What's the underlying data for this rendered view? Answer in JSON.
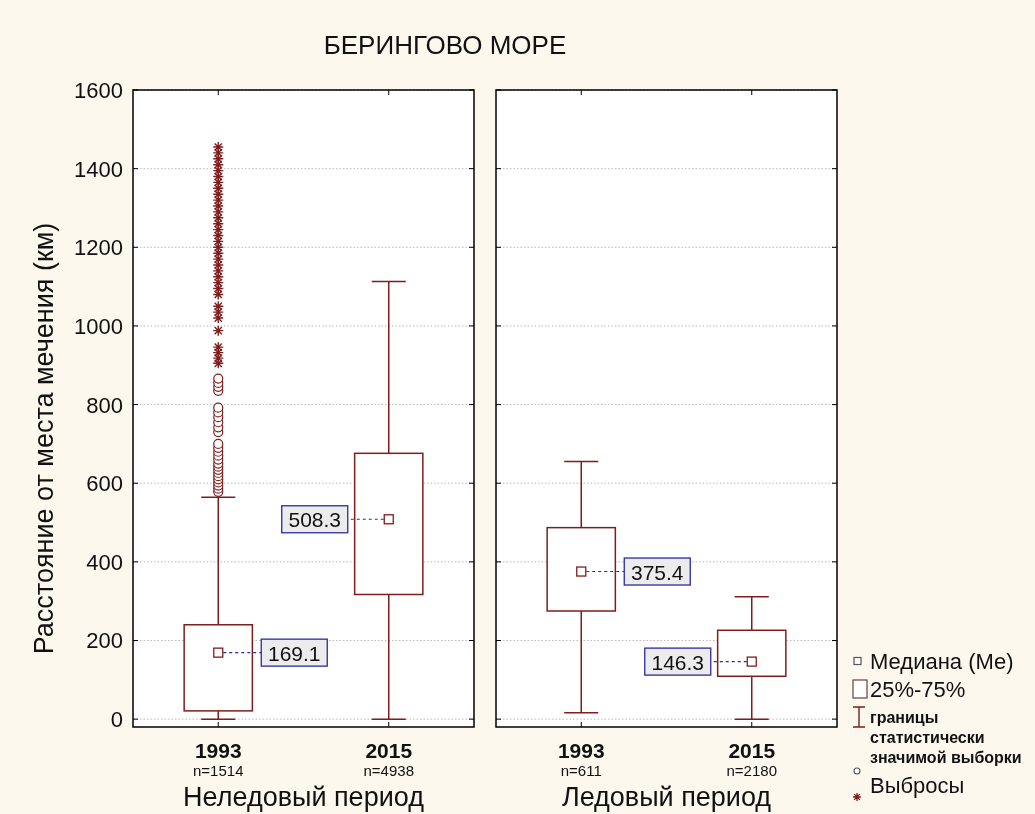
{
  "chart_data": [
    {
      "type": "box",
      "title": "БЕРИНГОВО МОРЕ",
      "xlabel": "Неледовый период",
      "ylabel": "Расстояние от места мечения (км)",
      "categories": [
        "1993\nn=1514",
        "2015\nn=4938"
      ],
      "series": [
        {
          "color": "#7f1d1d",
          "boxes": [
            {
              "low": 0,
              "q1": 21,
              "median": 169.1,
              "q3": 240,
              "high": 564,
              "outliers": [
                578,
                586,
                594,
                602,
                610,
                618,
                626,
                634,
                642,
                650,
                660,
                670,
                680,
                690,
                700,
                730,
                742,
                755,
                768,
                780,
                792,
                835,
                845,
                855,
                866,
                905,
                918,
                932,
                946,
                988,
                1020,
                1035,
                1050,
                1080,
                1095,
                1110,
                1125,
                1140,
                1155,
                1170,
                1185,
                1200,
                1215,
                1230,
                1245,
                1260,
                1275,
                1290,
                1305,
                1320,
                1335,
                1350,
                1365,
                1380,
                1395,
                1410,
                1425,
                1440,
                1455
              ]
            },
            {
              "low": 0,
              "q1": 317,
              "median": 508.3,
              "q3": 676,
              "high": 1113
            }
          ]
        }
      ],
      "ylim": [
        -20,
        1600
      ],
      "yticks": [
        0,
        200,
        400,
        600,
        800,
        1000,
        1200,
        1400,
        1600
      ],
      "grid": "y",
      "annotations": [
        {
          "text": "169.1",
          "x": "1993\nn=1514",
          "y": 169.1
        },
        {
          "text": "508.3",
          "x": "2015\nn=4938",
          "y": 508.3
        }
      ]
    },
    {
      "type": "box",
      "xlabel": "Ледовый период",
      "categories": [
        "1993\nn=611",
        "2015\nn=2180"
      ],
      "series": [
        {
          "color": "#7f1d1d",
          "boxes": [
            {
              "low": 16,
              "q1": 275,
              "median": 375.4,
              "q3": 487,
              "high": 655
            },
            {
              "low": 0,
              "q1": 109,
              "median": 146.3,
              "q3": 226,
              "high": 311
            }
          ]
        }
      ],
      "ylim": [
        -20,
        1600
      ],
      "yticks": [
        0,
        200,
        400,
        600,
        800,
        1000,
        1200,
        1400,
        1600
      ],
      "grid": "y",
      "tick_labels": "x",
      "annotations": [
        {
          "text": "375.4",
          "x": "1993\nn=611",
          "y": 375.4
        },
        {
          "text": "146.3",
          "x": "2015\nn=2180",
          "y": 146.3
        },
        "Медиана (Ме)",
        "25%-75%",
        "границы статистически значимой выборки",
        "Выбросы"
      ]
    }
  ]
}
